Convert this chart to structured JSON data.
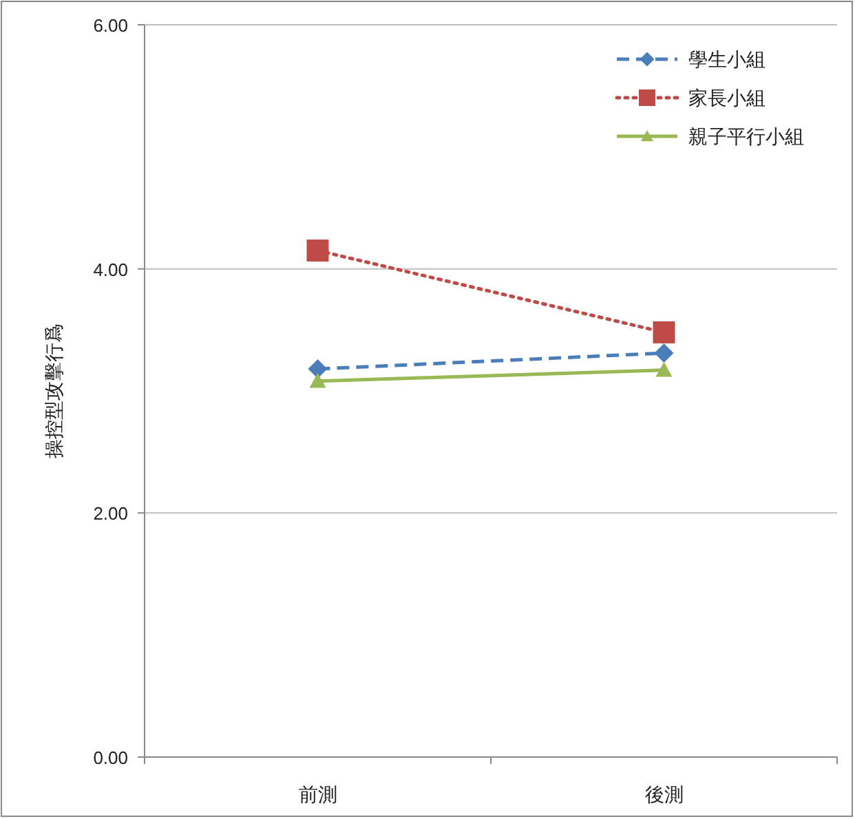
{
  "chart_data": {
    "type": "line",
    "ylabel": "操控型攻擊行爲",
    "categories": [
      "前測",
      "後測"
    ],
    "series": [
      {
        "name": "學生小組",
        "color": "#4a7ebb",
        "values": [
          3.18,
          3.31
        ],
        "marker": "diamond",
        "line_style": "dashed"
      },
      {
        "name": "家長小組",
        "color": "#be4b48",
        "values": [
          4.15,
          3.48
        ],
        "marker": "square",
        "line_style": "dotted"
      },
      {
        "name": "親子平行小組",
        "color": "#98b954",
        "values": [
          3.08,
          3.17
        ],
        "marker": "triangle",
        "line_style": "solid"
      }
    ],
    "ylim": [
      0,
      6
    ],
    "yticks": [
      {
        "value": 0,
        "label": "0.00"
      },
      {
        "value": 2,
        "label": "2.00"
      },
      {
        "value": 4,
        "label": "4.00"
      },
      {
        "value": 6,
        "label": "6.00"
      }
    ],
    "grid": "y",
    "legend": "top right"
  }
}
